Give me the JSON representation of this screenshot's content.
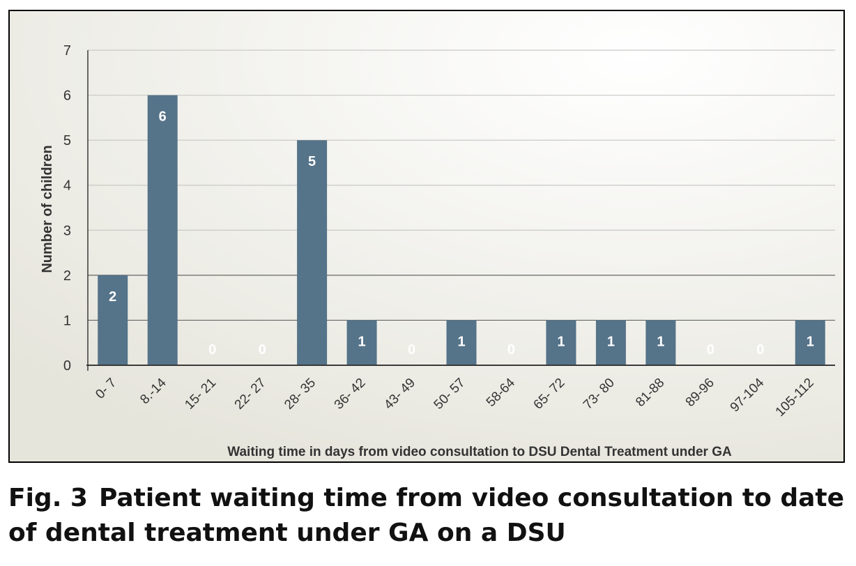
{
  "colors": {
    "bar": "#557389",
    "plot_background": "#f1f0ea",
    "gridline": "#c9c9c6",
    "axis": "#3a3a3a",
    "text": "#333333",
    "border": "#000000",
    "data_label": "#ffffff"
  },
  "caption": {
    "label": "Fig. 3",
    "text": "Patient waiting time from video consultation to date of dental treatment under GA on a DSU"
  },
  "chart_data": {
    "type": "bar",
    "title": "",
    "xlabel": "Waiting time in days from video consultation to DSU Dental Treatment under GA",
    "ylabel": "Number of children",
    "ylim": [
      0,
      7
    ],
    "yticks": [
      0,
      1,
      2,
      3,
      4,
      5,
      6,
      7
    ],
    "grid": true,
    "legend": "none",
    "categories": [
      "0- 7",
      "8.-14",
      "15- 21",
      "22- 27",
      "28- 35",
      "36- 42",
      "43- 49",
      "50- 57",
      "58-64",
      "65- 72",
      "73- 80",
      "81-88",
      "89-96",
      "97-104",
      "105-112"
    ],
    "values": [
      2,
      6,
      0,
      0,
      5,
      1,
      0,
      1,
      0,
      1,
      1,
      1,
      0,
      0,
      1
    ],
    "data_labels": [
      "2",
      "6",
      "0",
      "0",
      "5",
      "1",
      "0",
      "1",
      "0",
      "1",
      "1",
      "1",
      "0",
      "0",
      "1"
    ]
  }
}
